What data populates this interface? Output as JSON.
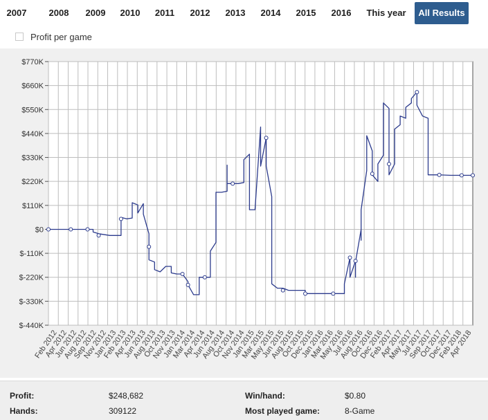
{
  "tabs": [
    {
      "label": "2007",
      "active": false
    },
    {
      "label": "2008",
      "active": false
    },
    {
      "label": "2009",
      "active": false
    },
    {
      "label": "2010",
      "active": false
    },
    {
      "label": "2011",
      "active": false
    },
    {
      "label": "2012",
      "active": false
    },
    {
      "label": "2013",
      "active": false
    },
    {
      "label": "2014",
      "active": false
    },
    {
      "label": "2015",
      "active": false
    },
    {
      "label": "2016",
      "active": false
    },
    {
      "label": "This year",
      "active": false
    },
    {
      "label": "All Results",
      "active": true
    }
  ],
  "profit_per_game": {
    "label": "Profit per game",
    "checked": false
  },
  "colors": {
    "line": "#2b3a8c",
    "active_tab": "#2e5d8f",
    "grid": "#bdbdbd",
    "plot_bg": "#ffffff",
    "panel_bg": "#f0f0f0"
  },
  "chart_data": {
    "type": "line",
    "y_tick_labels": [
      "$770K",
      "$660K",
      "$550K",
      "$440K",
      "$330K",
      "$220K",
      "$110K",
      "$0",
      "$-110K",
      "$-220K",
      "$-330K",
      "$-440K"
    ],
    "y_ticks": [
      770,
      660,
      550,
      440,
      330,
      220,
      110,
      0,
      -110,
      -220,
      -330,
      -440
    ],
    "ylim": [
      -440,
      770
    ],
    "y_unit": "thousands of USD",
    "x_tick_labels": [
      "Feb 2012",
      "Apr 2012",
      "Jun 2012",
      "Aug 2012",
      "Sep 2012",
      "Nov 2012",
      "Jan 2013",
      "Feb 2013",
      "Apr 2013",
      "Jun 2013",
      "Aug 2013",
      "Oct 2013",
      "Nov 2013",
      "Jan 2014",
      "Mar 2014",
      "Apr 2014",
      "Jun 2014",
      "Aug 2014",
      "Oct 2014",
      "Nov 2014",
      "Jan 2015",
      "Mar 2015",
      "May 2015",
      "Jun 2015",
      "Aug 2015",
      "Oct 2015",
      "Dec 2015",
      "Jan 2016",
      "Mar 2016",
      "May 2016",
      "Jul 2016",
      "Aug 2016",
      "Oct 2016",
      "Dec 2016",
      "Feb 2017",
      "Apr 2017",
      "May 2017",
      "Jul 2017",
      "Sep 2017",
      "Oct 2017",
      "Dec 2017",
      "Feb 2018",
      "Apr 2018"
    ],
    "xlim": [
      "Feb 2012",
      "Jun 2018"
    ],
    "grid": true,
    "series": [
      {
        "values": [
          [
            "Feb 2012",
            0
          ],
          [
            "Apr 2012",
            0
          ],
          [
            "Jun 2012",
            0
          ],
          [
            "Aug 2012",
            0
          ],
          [
            "Sep 2012",
            0
          ],
          [
            "Oct 2012",
            0
          ],
          [
            "Oct 2012",
            -12
          ],
          [
            "Nov 2012",
            -20
          ],
          [
            "Jan 2013",
            -28
          ],
          [
            "Mar 2013",
            -28
          ],
          [
            "Mar 2013",
            55
          ],
          [
            "Apr 2013",
            48
          ],
          [
            "Apr 2013",
            48
          ],
          [
            "May 2013",
            52
          ],
          [
            "May 2013",
            122
          ],
          [
            "Jun 2013",
            112
          ],
          [
            "Jun 2013",
            75
          ],
          [
            "Jul 2013",
            118
          ],
          [
            "Jul 2013",
            70
          ],
          [
            "Aug 2013",
            -20
          ],
          [
            "Aug 2013",
            -80
          ],
          [
            "Aug 2013",
            -140
          ],
          [
            "Sep 2013",
            -150
          ],
          [
            "Sep 2013",
            -185
          ],
          [
            "Oct 2013",
            -195
          ],
          [
            "Nov 2013",
            -170
          ],
          [
            "Dec 2013",
            -170
          ],
          [
            "Dec 2013",
            -200
          ],
          [
            "Jan 2014",
            -205
          ],
          [
            "Feb 2014",
            -205
          ],
          [
            "Mar 2014",
            -240
          ],
          [
            "Mar 2014",
            -255
          ],
          [
            "Apr 2014",
            -300
          ],
          [
            "May 2014",
            -300
          ],
          [
            "May 2014",
            -220
          ],
          [
            "Jun 2014",
            -220
          ],
          [
            "Jul 2014",
            -220
          ],
          [
            "Jul 2014",
            -100
          ],
          [
            "Aug 2014",
            -60
          ],
          [
            "Aug 2014",
            170
          ],
          [
            "Sep 2014",
            170
          ],
          [
            "Oct 2014",
            175
          ],
          [
            "Oct 2014",
            295
          ],
          [
            "Oct 2014",
            210
          ],
          [
            "Nov 2014",
            210
          ],
          [
            "Dec 2014",
            210
          ],
          [
            "Jan 2015",
            215
          ],
          [
            "Jan 2015",
            320
          ],
          [
            "Feb 2015",
            345
          ],
          [
            "Feb 2015",
            90
          ],
          [
            "Mar 2015",
            90
          ],
          [
            "Apr 2015",
            470
          ],
          [
            "Apr 2015",
            290
          ],
          [
            "May 2015",
            420
          ],
          [
            "May 2015",
            290
          ],
          [
            "Jun 2015",
            150
          ],
          [
            "Jun 2015",
            -250
          ],
          [
            "Jul 2015",
            -270
          ],
          [
            "Aug 2015",
            -270
          ],
          [
            "Sep 2015",
            -280
          ],
          [
            "Oct 2015",
            -280
          ],
          [
            "Nov 2015",
            -280
          ],
          [
            "Dec 2015",
            -280
          ],
          [
            "Dec 2015",
            -295
          ],
          [
            "Jan 2016",
            -295
          ],
          [
            "Mar 2016",
            -295
          ],
          [
            "May 2016",
            -295
          ],
          [
            "Jun 2016",
            -295
          ],
          [
            "Jul 2016",
            -295
          ],
          [
            "Jul 2016",
            -250
          ],
          [
            "Aug 2016",
            -130
          ],
          [
            "Aug 2016",
            -220
          ],
          [
            "Sep 2016",
            -145
          ],
          [
            "Sep 2016",
            -220
          ],
          [
            "Sep 2016",
            -150
          ],
          [
            "Oct 2016",
            0
          ],
          [
            "Oct 2016",
            -50
          ],
          [
            "Oct 2016",
            90
          ],
          [
            "Nov 2016",
            270
          ],
          [
            "Nov 2016",
            395
          ],
          [
            "Nov 2016",
            430
          ],
          [
            "Dec 2016",
            360
          ],
          [
            "Dec 2016",
            250
          ],
          [
            "Jan 2017",
            220
          ],
          [
            "Jan 2017",
            300
          ],
          [
            "Feb 2017",
            340
          ],
          [
            "Feb 2017",
            455
          ],
          [
            "Feb 2017",
            580
          ],
          [
            "Mar 2017",
            555
          ],
          [
            "Mar 2017",
            450
          ],
          [
            "Mar 2017",
            250
          ],
          [
            "Apr 2017",
            300
          ],
          [
            "Apr 2017",
            310
          ],
          [
            "Apr 2017",
            460
          ],
          [
            "May 2017",
            480
          ],
          [
            "May 2017",
            520
          ],
          [
            "Jun 2017",
            510
          ],
          [
            "Jun 2017",
            560
          ],
          [
            "Jul 2017",
            580
          ],
          [
            "Jul 2017",
            600
          ],
          [
            "Aug 2017",
            630
          ],
          [
            "Aug 2017",
            570
          ],
          [
            "Sep 2017",
            520
          ],
          [
            "Oct 2017",
            510
          ],
          [
            "Oct 2017",
            480
          ],
          [
            "Oct 2017",
            250
          ],
          [
            "Dec 2017",
            250
          ],
          [
            "Feb 2018",
            248
          ],
          [
            "Apr 2018",
            248
          ],
          [
            "Jun 2018",
            248
          ]
        ],
        "markers": [
          [
            "Feb 2012",
            0
          ],
          [
            "Jun 2012",
            0
          ],
          [
            "Sep 2012",
            0
          ],
          [
            "Nov 2012",
            -28
          ],
          [
            "Mar 2013",
            48
          ],
          [
            "Aug 2013",
            -80
          ],
          [
            "Feb 2014",
            -205
          ],
          [
            "Mar 2014",
            -255
          ],
          [
            "Jun 2014",
            -220
          ],
          [
            "Nov 2014",
            210
          ],
          [
            "May 2015",
            420
          ],
          [
            "Aug 2015",
            -280
          ],
          [
            "Dec 2015",
            -295
          ],
          [
            "May 2016",
            -295
          ],
          [
            "Aug 2016",
            -130
          ],
          [
            "Sep 2016",
            -145
          ],
          [
            "Dec 2016",
            255
          ],
          [
            "Mar 2017",
            300
          ],
          [
            "Aug 2017",
            630
          ],
          [
            "Dec 2017",
            250
          ],
          [
            "Apr 2018",
            248
          ],
          [
            "Jun 2018",
            248
          ]
        ]
      }
    ]
  },
  "stats": {
    "profit_label": "Profit:",
    "profit_value": "$248,682",
    "hands_label": "Hands:",
    "hands_value": "309122",
    "winhand_label": "Win/hand:",
    "winhand_value": "$0.80",
    "most_played_label": "Most played game:",
    "most_played_value": "8-Game"
  }
}
